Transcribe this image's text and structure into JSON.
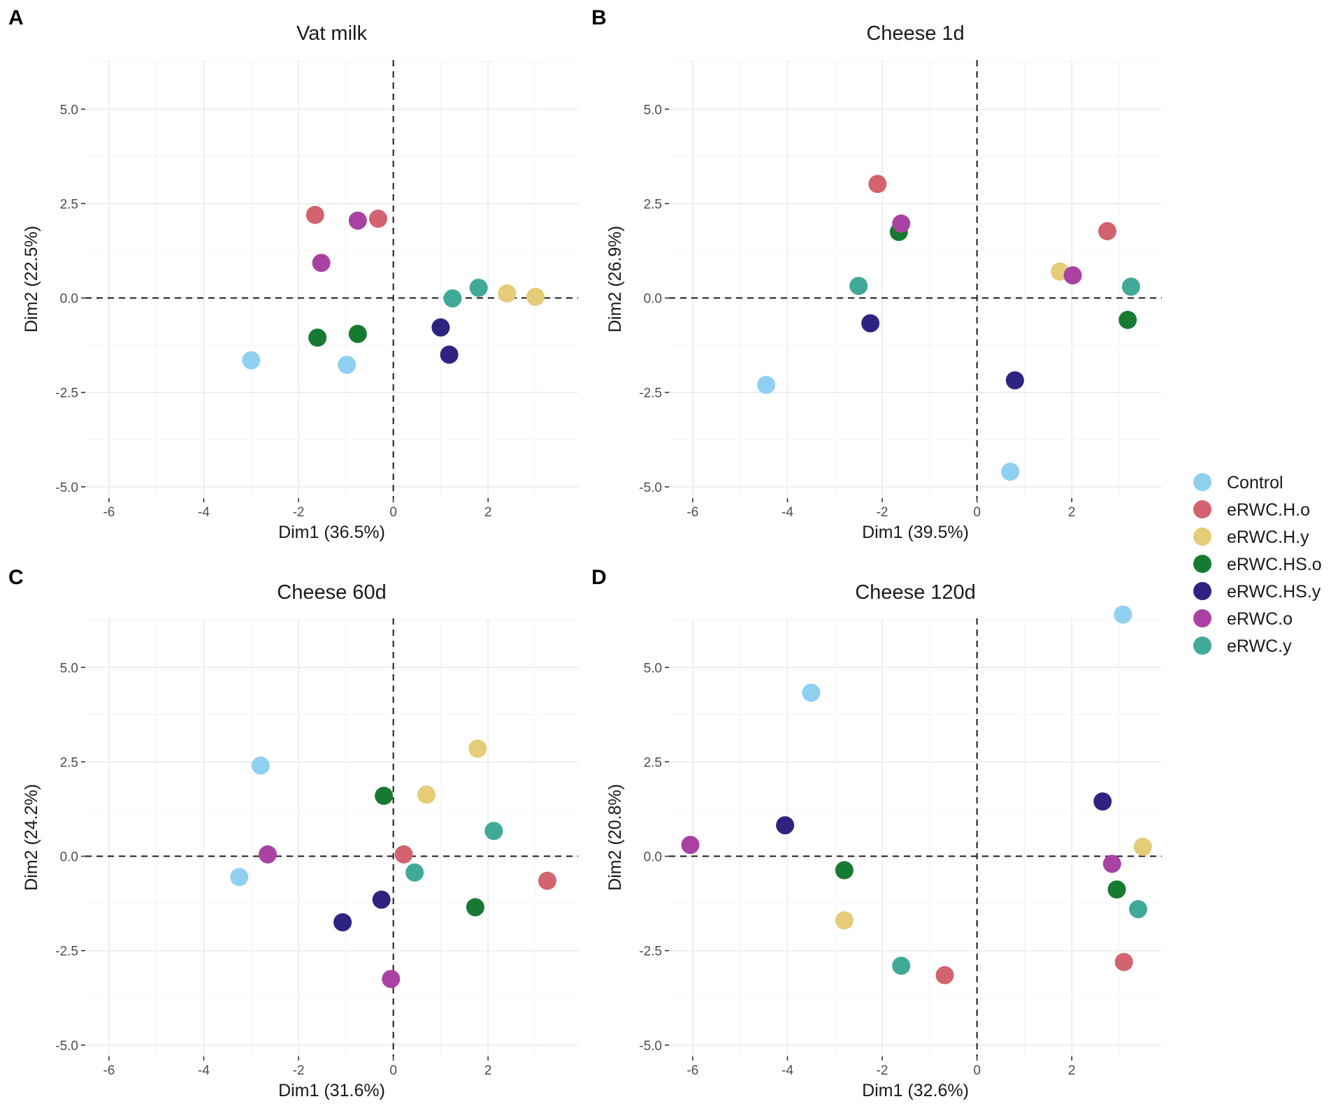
{
  "chart_data": [
    {
      "type": "scatter",
      "panel_label": "A",
      "title": "Vat milk",
      "xlabel": "Dim1 (36.5%)",
      "ylabel": "Dim2 (22.5%)",
      "xlim": [
        -6.5,
        3.9
      ],
      "ylim": [
        -5.3,
        6.3
      ],
      "xticks": [
        -6,
        -4,
        -2,
        0,
        2
      ],
      "xtick_labels": [
        "-6",
        "-4",
        "-2",
        "0",
        "2"
      ],
      "yticks": [
        -5,
        -2.5,
        0,
        2.5,
        5
      ],
      "ytick_labels": [
        "-5.0",
        "-2.5",
        "0.0",
        "2.5",
        "5.0"
      ],
      "points": [
        {
          "group": "Control",
          "x": -3.0,
          "y": -1.65
        },
        {
          "group": "Control",
          "x": -0.98,
          "y": -1.77
        },
        {
          "group": "eRWC.H.o",
          "x": -1.65,
          "y": 2.2
        },
        {
          "group": "eRWC.H.o",
          "x": -0.32,
          "y": 2.1
        },
        {
          "group": "eRWC.H.y",
          "x": 2.4,
          "y": 0.12
        },
        {
          "group": "eRWC.H.y",
          "x": 3.0,
          "y": 0.03
        },
        {
          "group": "eRWC.HS.o",
          "x": -1.6,
          "y": -1.05
        },
        {
          "group": "eRWC.HS.o",
          "x": -0.75,
          "y": -0.95
        },
        {
          "group": "eRWC.HS.y",
          "x": 1.0,
          "y": -0.78
        },
        {
          "group": "eRWC.HS.y",
          "x": 1.18,
          "y": -1.5
        },
        {
          "group": "eRWC.o",
          "x": -1.52,
          "y": 0.93
        },
        {
          "group": "eRWC.o",
          "x": -0.75,
          "y": 2.05
        },
        {
          "group": "eRWC.y",
          "x": 1.25,
          "y": -0.01
        },
        {
          "group": "eRWC.y",
          "x": 1.8,
          "y": 0.27
        }
      ]
    },
    {
      "type": "scatter",
      "panel_label": "B",
      "title": "Cheese 1d",
      "xlabel": "Dim1 (39.5%)",
      "ylabel": "Dim2 (26.9%)",
      "xlim": [
        -6.5,
        3.9
      ],
      "ylim": [
        -5.3,
        6.3
      ],
      "xticks": [
        -6,
        -4,
        -2,
        0,
        2
      ],
      "xtick_labels": [
        "-6",
        "-4",
        "-2",
        "0",
        "2"
      ],
      "yticks": [
        -5,
        -2.5,
        0,
        2.5,
        5
      ],
      "ytick_labels": [
        "-5.0",
        "-2.5",
        "0.0",
        "2.5",
        "5.0"
      ],
      "points": [
        {
          "group": "Control",
          "x": -4.45,
          "y": -2.3
        },
        {
          "group": "Control",
          "x": 0.7,
          "y": -4.6
        },
        {
          "group": "eRWC.H.o",
          "x": -2.1,
          "y": 3.02
        },
        {
          "group": "eRWC.H.o",
          "x": 2.75,
          "y": 1.77
        },
        {
          "group": "eRWC.H.y",
          "x": 1.75,
          "y": 0.7
        },
        {
          "group": "eRWC.HS.o",
          "x": -1.65,
          "y": 1.75
        },
        {
          "group": "eRWC.HS.o",
          "x": 3.18,
          "y": -0.58
        },
        {
          "group": "eRWC.HS.y",
          "x": -2.25,
          "y": -0.67
        },
        {
          "group": "eRWC.HS.y",
          "x": 0.8,
          "y": -2.18
        },
        {
          "group": "eRWC.o",
          "x": -1.6,
          "y": 1.97
        },
        {
          "group": "eRWC.o",
          "x": 2.02,
          "y": 0.6
        },
        {
          "group": "eRWC.y",
          "x": -2.5,
          "y": 0.32
        },
        {
          "group": "eRWC.y",
          "x": 3.25,
          "y": 0.3
        }
      ]
    },
    {
      "type": "scatter",
      "panel_label": "C",
      "title": "Cheese 60d",
      "xlabel": "Dim1 (31.6%)",
      "ylabel": "Dim2 (24.2%)",
      "xlim": [
        -6.5,
        3.9
      ],
      "ylim": [
        -5.3,
        6.3
      ],
      "xticks": [
        -6,
        -4,
        -2,
        0,
        2
      ],
      "xtick_labels": [
        "-6",
        "-4",
        "-2",
        "0",
        "2"
      ],
      "yticks": [
        -5,
        -2.5,
        0,
        2.5,
        5
      ],
      "ytick_labels": [
        "-5.0",
        "-2.5",
        "0.0",
        "2.5",
        "5.0"
      ],
      "points": [
        {
          "group": "Control",
          "x": -2.8,
          "y": 2.4
        },
        {
          "group": "Control",
          "x": -3.25,
          "y": -0.55
        },
        {
          "group": "eRWC.H.o",
          "x": 0.22,
          "y": 0.05
        },
        {
          "group": "eRWC.H.o",
          "x": 3.25,
          "y": -0.65
        },
        {
          "group": "eRWC.H.y",
          "x": 1.78,
          "y": 2.85
        },
        {
          "group": "eRWC.H.y",
          "x": 0.7,
          "y": 1.63
        },
        {
          "group": "eRWC.HS.o",
          "x": -0.2,
          "y": 1.6
        },
        {
          "group": "eRWC.HS.o",
          "x": 1.73,
          "y": -1.35
        },
        {
          "group": "eRWC.HS.y",
          "x": -0.25,
          "y": -1.15
        },
        {
          "group": "eRWC.HS.y",
          "x": -1.07,
          "y": -1.75
        },
        {
          "group": "eRWC.o",
          "x": -2.65,
          "y": 0.05
        },
        {
          "group": "eRWC.o",
          "x": -0.05,
          "y": -3.25
        },
        {
          "group": "eRWC.y",
          "x": 2.12,
          "y": 0.67
        },
        {
          "group": "eRWC.y",
          "x": 0.45,
          "y": -0.43
        }
      ]
    },
    {
      "type": "scatter",
      "panel_label": "D",
      "title": "Cheese 120d",
      "xlabel": "Dim1 (32.6%)",
      "ylabel": "Dim2 (20.8%)",
      "xlim": [
        -6.5,
        3.9
      ],
      "ylim": [
        -5.3,
        6.3
      ],
      "xticks": [
        -6,
        -4,
        -2,
        0,
        2
      ],
      "xtick_labels": [
        "-6",
        "-4",
        "-2",
        "0",
        "2"
      ],
      "yticks": [
        -5,
        -2.5,
        0,
        2.5,
        5
      ],
      "ytick_labels": [
        "-5.0",
        "-2.5",
        "0.0",
        "2.5",
        "5.0"
      ],
      "points": [
        {
          "group": "Control",
          "x": -3.5,
          "y": 4.33
        },
        {
          "group": "Control",
          "x": 3.08,
          "y": 6.4
        },
        {
          "group": "eRWC.H.o",
          "x": -0.68,
          "y": -3.15
        },
        {
          "group": "eRWC.H.o",
          "x": 3.1,
          "y": -2.8
        },
        {
          "group": "eRWC.H.y",
          "x": -2.8,
          "y": -1.7
        },
        {
          "group": "eRWC.H.y",
          "x": 3.5,
          "y": 0.25
        },
        {
          "group": "eRWC.HS.o",
          "x": -2.8,
          "y": -0.37
        },
        {
          "group": "eRWC.HS.o",
          "x": 2.95,
          "y": -0.88
        },
        {
          "group": "eRWC.HS.y",
          "x": -4.05,
          "y": 0.82
        },
        {
          "group": "eRWC.HS.y",
          "x": 2.65,
          "y": 1.45
        },
        {
          "group": "eRWC.o",
          "x": -6.05,
          "y": 0.3
        },
        {
          "group": "eRWC.o",
          "x": 2.85,
          "y": -0.2
        },
        {
          "group": "eRWC.y",
          "x": -1.6,
          "y": -2.9
        },
        {
          "group": "eRWC.y",
          "x": 3.4,
          "y": -1.4
        }
      ]
    }
  ],
  "legend": {
    "position": "right",
    "items": [
      {
        "label": "Control",
        "color": "#8fd0f0"
      },
      {
        "label": "eRWC.H.o",
        "color": "#d2636f"
      },
      {
        "label": "eRWC.H.y",
        "color": "#e4cc78"
      },
      {
        "label": "eRWC.HS.o",
        "color": "#177a32"
      },
      {
        "label": "eRWC.HS.y",
        "color": "#2f2381"
      },
      {
        "label": "eRWC.o",
        "color": "#a942a3"
      },
      {
        "label": "eRWC.y",
        "color": "#40a998"
      }
    ]
  }
}
